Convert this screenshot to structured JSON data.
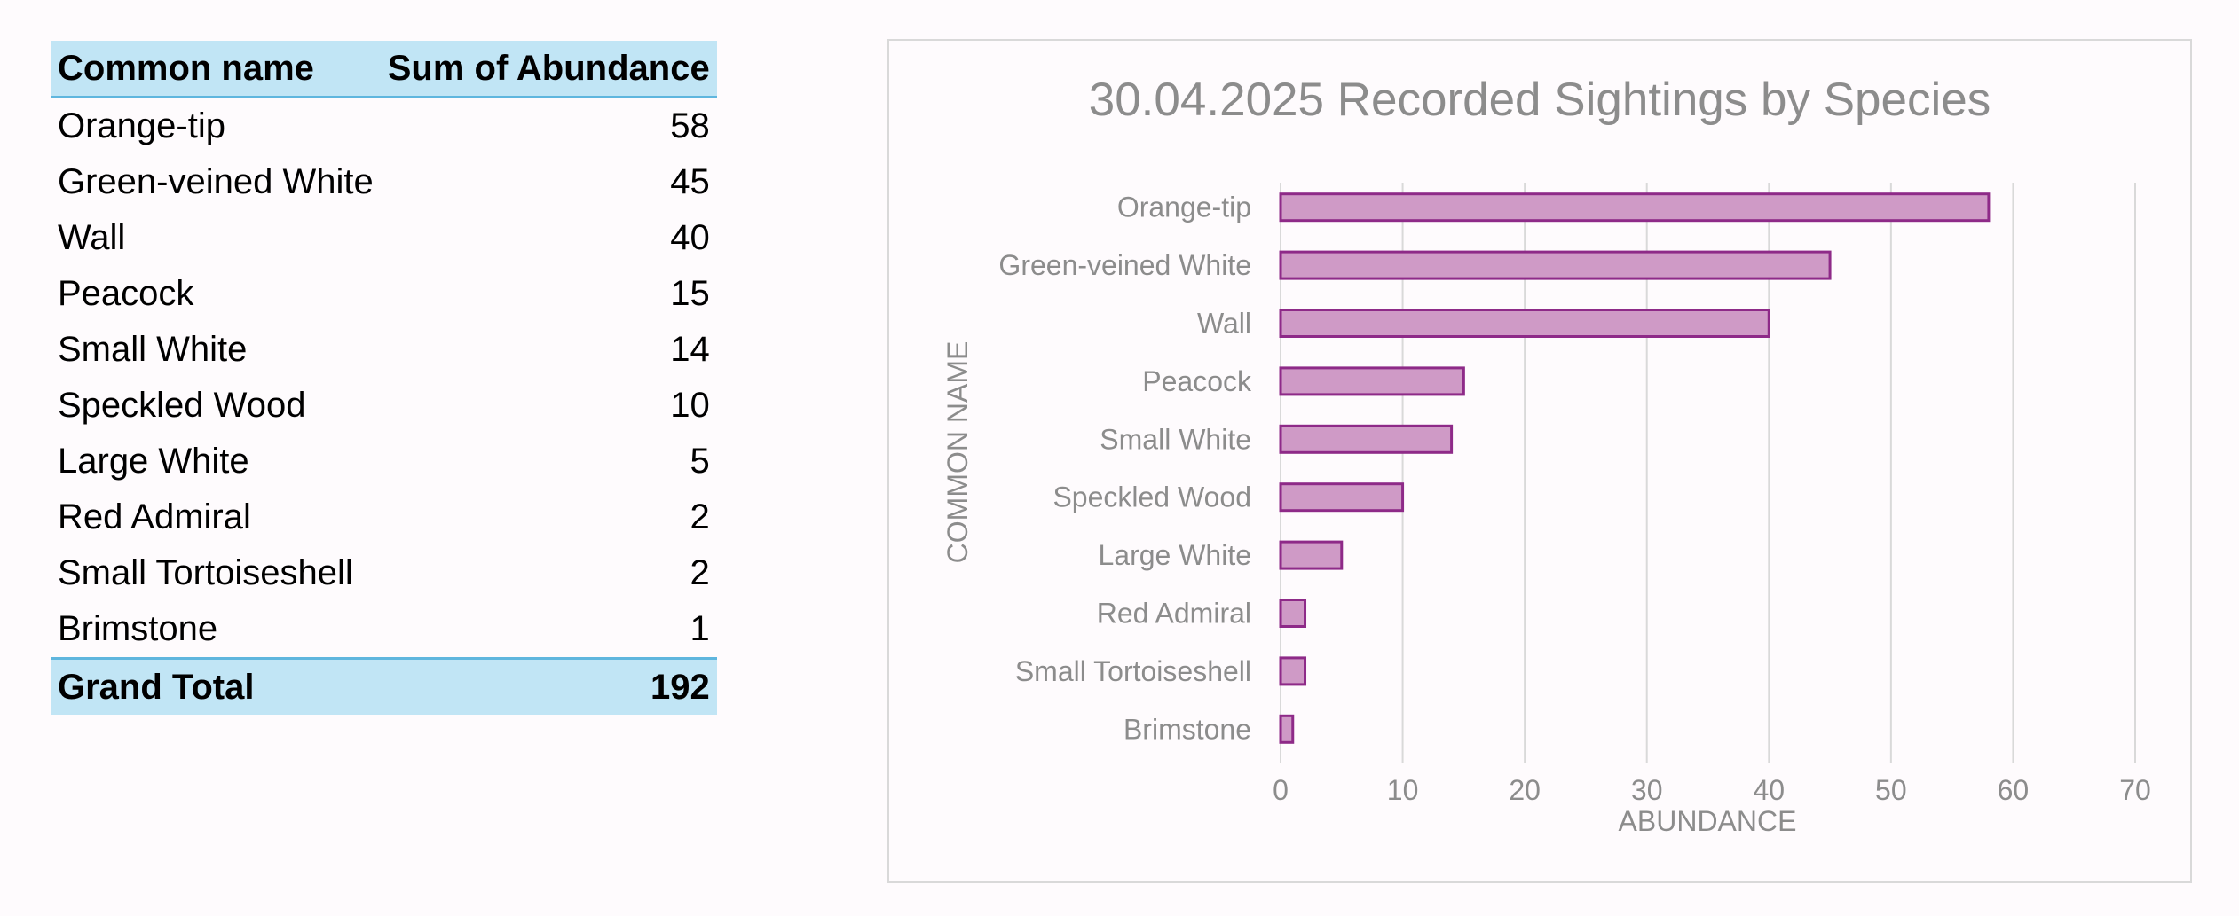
{
  "pivot": {
    "headers": {
      "name": "Common name",
      "value": "Sum of Abundance"
    },
    "rows": [
      {
        "name": "Orange-tip",
        "value": "58"
      },
      {
        "name": "Green-veined White",
        "value": "45"
      },
      {
        "name": "Wall",
        "value": "40"
      },
      {
        "name": "Peacock",
        "value": "15"
      },
      {
        "name": "Small White",
        "value": "14"
      },
      {
        "name": "Speckled Wood",
        "value": "10"
      },
      {
        "name": "Large White",
        "value": "5"
      },
      {
        "name": "Red Admiral",
        "value": "2"
      },
      {
        "name": "Small Tortoiseshell",
        "value": "2"
      },
      {
        "name": "Brimstone",
        "value": "1"
      }
    ],
    "total": {
      "label": "Grand Total",
      "value": "192"
    }
  },
  "chart_data": {
    "type": "bar",
    "orientation": "horizontal",
    "title": "30.04.2025 Recorded Sightings by Species",
    "xlabel": "ABUNDANCE",
    "ylabel": "COMMON NAME",
    "categories": [
      "Orange-tip",
      "Green-veined White",
      "Wall",
      "Peacock",
      "Small White",
      "Speckled Wood",
      "Large White",
      "Red Admiral",
      "Small Tortoiseshell",
      "Brimstone"
    ],
    "values": [
      58,
      45,
      40,
      15,
      14,
      10,
      5,
      2,
      2,
      1
    ],
    "xlim": [
      0,
      70
    ],
    "xticks": [
      0,
      10,
      20,
      30,
      40,
      50,
      60,
      70
    ],
    "grid": true,
    "legend": false,
    "colors": {
      "bar_fill": "#cf9ac6",
      "bar_stroke": "#8e2a88",
      "text": "#8c8c8c",
      "grid": "#d9d9d9"
    }
  }
}
